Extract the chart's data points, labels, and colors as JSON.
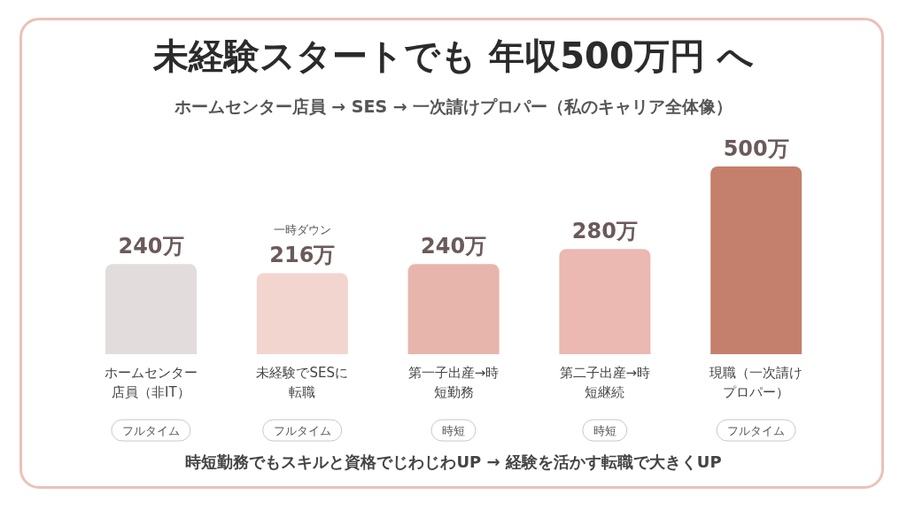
{
  "chart_data": {
    "type": "bar",
    "title": "未経験スタートでも 年収500万円 へ",
    "subtitle": "ホームセンター店員 → SES → 一次請けプロパー（私のキャリア全体像）",
    "categories": [
      "ホームセンター店員（非IT）",
      "未経験でSESに転職",
      "第一子出産→時短勤務",
      "第二子出産→時短継続",
      "現職（一次請けプロパー）"
    ],
    "values": [
      240,
      216,
      240,
      280,
      500
    ],
    "colors": [
      "#e3dcdc",
      "#f2d5cf",
      "#e8b5ad",
      "#ebb8b2",
      "#c4806d"
    ],
    "value_labels": [
      "240万",
      "216万",
      "240万",
      "280万",
      "500万"
    ],
    "annotations": [
      "フルタイム",
      "フルタイム",
      "時短",
      "時短",
      "フルタイム",
      "一時ダウン",
      "時短勤務でもスキルと資格でじわじわUP → 経験を活かす転職で大きくUP"
    ],
    "grid": false,
    "legend": false
  }
}
